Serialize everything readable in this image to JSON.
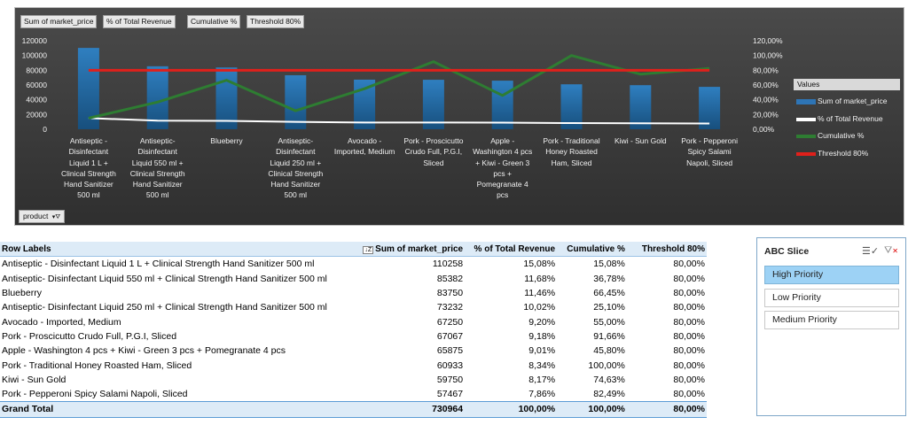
{
  "chart": {
    "field_buttons": [
      "Sum of market_price",
      "% of Total Revenue",
      "Cumulative %",
      "Threshold 80%"
    ],
    "product_filter_label": "product",
    "legend": {
      "title": "Values",
      "items": [
        {
          "name": "Sum of market_price",
          "color": "#2e75b6"
        },
        {
          "name": "% of Total Revenue",
          "color": "#ffffff"
        },
        {
          "name": "Cumulative %",
          "color": "#2e7d32"
        },
        {
          "name": "Threshold 80%",
          "color": "#e0201b"
        }
      ]
    }
  },
  "chart_data": {
    "type": "bar",
    "categories": [
      [
        "Antiseptic -",
        "Disinfectant",
        "Liquid 1 L +",
        "Clinical Strength",
        "Hand Sanitizer",
        "500 ml"
      ],
      [
        "Antiseptic-",
        "Disinfectant",
        "Liquid 550 ml +",
        "Clinical Strength",
        "Hand Sanitizer",
        "500 ml"
      ],
      [
        "Blueberry"
      ],
      [
        "Antiseptic-",
        "Disinfectant",
        "Liquid 250 ml +",
        "Clinical Strength",
        "Hand Sanitizer",
        "500 ml"
      ],
      [
        "Avocado -",
        "Imported, Medium"
      ],
      [
        "Pork - Proscicutto",
        "Crudo Full, P.G.I,",
        "Sliced"
      ],
      [
        "Apple -",
        "Washington 4 pcs",
        "+ Kiwi - Green 3",
        "pcs +",
        "Pomegranate 4",
        "pcs"
      ],
      [
        "Pork - Traditional",
        "Honey Roasted",
        "Ham, Sliced"
      ],
      [
        "Kiwi - Sun Gold"
      ],
      [
        "Pork - Pepperoni",
        "Spicy Salami",
        "Napoli, Sliced"
      ]
    ],
    "series": [
      {
        "name": "Sum of market_price",
        "axis": "left",
        "type": "bar",
        "values": [
          110258,
          85382,
          83750,
          73232,
          67250,
          67067,
          65875,
          60933,
          59750,
          57467
        ]
      },
      {
        "name": "% of Total Revenue",
        "axis": "right",
        "type": "line",
        "values": [
          15.08,
          11.68,
          11.46,
          10.02,
          9.2,
          9.18,
          9.01,
          8.34,
          8.17,
          7.86
        ]
      },
      {
        "name": "Cumulative %",
        "axis": "right",
        "type": "line",
        "values": [
          15.08,
          36.78,
          66.45,
          25.1,
          55.0,
          91.66,
          45.8,
          100.0,
          74.63,
          82.49
        ]
      },
      {
        "name": "Threshold 80%",
        "axis": "right",
        "type": "line",
        "values": [
          80,
          80,
          80,
          80,
          80,
          80,
          80,
          80,
          80,
          80
        ]
      }
    ],
    "y_left": {
      "min": 0,
      "max": 120000,
      "ticks": [
        "0",
        "20000",
        "40000",
        "60000",
        "80000",
        "100000",
        "120000"
      ]
    },
    "y_right": {
      "min": 0,
      "max": 120,
      "ticks": [
        "0,00%",
        "20,00%",
        "40,00%",
        "60,00%",
        "80,00%",
        "100,00%",
        "120,00%"
      ]
    },
    "legend_position": "right",
    "grid": false
  },
  "pivot": {
    "headers": {
      "row_labels": "Row Labels",
      "sum": "Sum of market_price",
      "pct": "% of Total Revenue",
      "cum": "Cumulative %",
      "thr": "Threshold 80%"
    },
    "rows": [
      {
        "label": "Antiseptic - Disinfectant Liquid 1 L + Clinical Strength Hand Sanitizer 500 ml",
        "sum": "110258",
        "pct": "15,08%",
        "cum": "15,08%",
        "thr": "80,00%"
      },
      {
        "label": "Antiseptic- Disinfectant Liquid 550 ml + Clinical Strength Hand Sanitizer 500 ml",
        "sum": "85382",
        "pct": "11,68%",
        "cum": "36,78%",
        "thr": "80,00%"
      },
      {
        "label": "Blueberry",
        "sum": "83750",
        "pct": "11,46%",
        "cum": "66,45%",
        "thr": "80,00%"
      },
      {
        "label": "Antiseptic- Disinfectant Liquid 250 ml + Clinical Strength Hand Sanitizer 500 ml",
        "sum": "73232",
        "pct": "10,02%",
        "cum": "25,10%",
        "thr": "80,00%"
      },
      {
        "label": "Avocado - Imported, Medium",
        "sum": "67250",
        "pct": "9,20%",
        "cum": "55,00%",
        "thr": "80,00%"
      },
      {
        "label": "Pork - Proscicutto Crudo Full, P.G.I, Sliced",
        "sum": "67067",
        "pct": "9,18%",
        "cum": "91,66%",
        "thr": "80,00%"
      },
      {
        "label": "Apple - Washington 4 pcs + Kiwi - Green 3 pcs + Pomegranate 4 pcs",
        "sum": "65875",
        "pct": "9,01%",
        "cum": "45,80%",
        "thr": "80,00%"
      },
      {
        "label": "Pork - Traditional Honey Roasted Ham, Sliced",
        "sum": "60933",
        "pct": "8,34%",
        "cum": "100,00%",
        "thr": "80,00%"
      },
      {
        "label": "Kiwi - Sun Gold",
        "sum": "59750",
        "pct": "8,17%",
        "cum": "74,63%",
        "thr": "80,00%"
      },
      {
        "label": "Pork - Pepperoni Spicy Salami Napoli, Sliced",
        "sum": "57467",
        "pct": "7,86%",
        "cum": "82,49%",
        "thr": "80,00%"
      }
    ],
    "total": {
      "label": "Grand Total",
      "sum": "730964",
      "pct": "100,00%",
      "cum": "100,00%",
      "thr": "80,00%"
    }
  },
  "slicer": {
    "title": "ABC Slice",
    "items": [
      {
        "label": "High Priority",
        "selected": true
      },
      {
        "label": "Low Priority",
        "selected": false
      },
      {
        "label": "Medium Priority",
        "selected": false
      }
    ]
  }
}
